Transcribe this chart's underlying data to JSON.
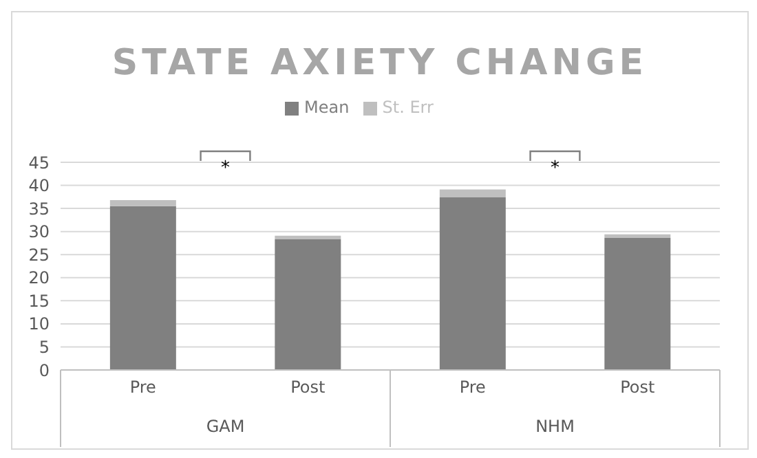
{
  "chart_data": {
    "type": "bar",
    "title": "STATE AXIETY CHANGE",
    "categories": [
      "Pre",
      "Post",
      "Pre",
      "Post"
    ],
    "stacked": true,
    "series": [
      {
        "name": "Mean",
        "color": "#808080",
        "values": [
          35.5,
          28.3,
          37.4,
          28.6
        ]
      },
      {
        "name": "St. Err",
        "color": "#bfbfbf",
        "values": [
          1.3,
          0.8,
          1.7,
          0.8
        ]
      }
    ],
    "ylim": [
      0,
      45
    ],
    "yticks": [
      0,
      5,
      10,
      15,
      20,
      25,
      30,
      35,
      40,
      45
    ],
    "grid": "y",
    "legend": "top",
    "annotations": [
      "*",
      "*",
      "GAM",
      "NHM"
    ]
  }
}
